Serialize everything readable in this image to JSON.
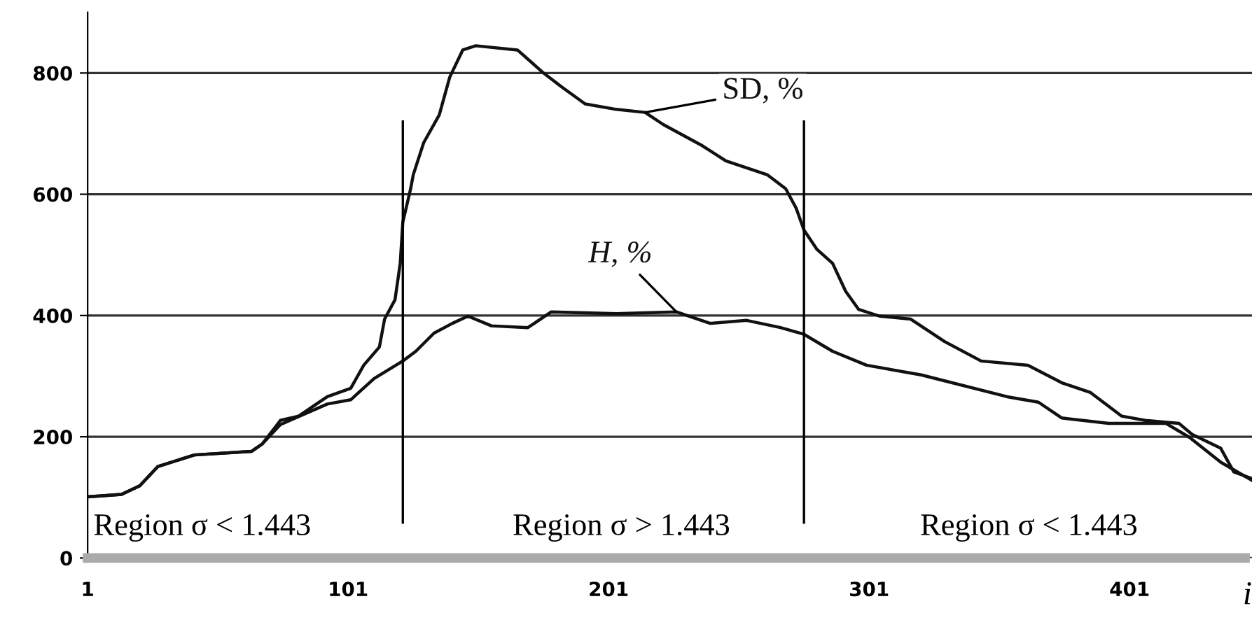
{
  "chart_data": {
    "type": "line",
    "xlabel": "i",
    "xlim": [
      1,
      448
    ],
    "ylim": [
      0,
      900
    ],
    "xticks": [
      1,
      101,
      201,
      301,
      401
    ],
    "yticks": [
      0,
      200,
      400,
      600,
      800
    ],
    "grid": "y",
    "marker": "none",
    "line_style": "solid",
    "series": [
      {
        "name": "SD, %",
        "color": "#111111",
        "x": [
          1,
          14,
          21,
          28,
          42,
          64,
          68,
          75,
          82,
          93,
          102,
          107,
          113,
          115,
          119,
          121,
          122,
          125,
          126,
          130,
          136,
          140,
          145,
          150,
          166,
          176,
          183,
          192,
          204,
          215,
          222,
          237,
          246,
          262,
          269,
          273,
          276,
          281,
          287,
          292,
          297,
          305,
          317,
          330,
          344,
          362,
          375,
          386,
          398,
          407,
          420,
          425,
          436,
          441,
          448
        ],
        "values": [
          101,
          105,
          119,
          151,
          170,
          176,
          188,
          227,
          234,
          266,
          280,
          318,
          348,
          394,
          426,
          486,
          554,
          609,
          632,
          685,
          731,
          793,
          838,
          845,
          838,
          800,
          777,
          749,
          740,
          735,
          715,
          680,
          655,
          632,
          609,
          577,
          541,
          509,
          486,
          440,
          410,
          399,
          394,
          357,
          325,
          318,
          289,
          273,
          234,
          227,
          222,
          204,
          181,
          142,
          131
        ]
      },
      {
        "name": "H, %",
        "color": "#111111",
        "x": [
          1,
          14,
          21,
          28,
          42,
          64,
          68,
          75,
          93,
          102,
          111,
          122,
          127,
          134,
          141,
          147,
          156,
          170,
          179,
          204,
          227,
          240,
          254,
          267,
          276,
          287,
          300,
          321,
          354,
          366,
          375,
          393,
          415,
          424,
          436,
          448
        ],
        "values": [
          101,
          105,
          119,
          151,
          170,
          176,
          188,
          220,
          254,
          261,
          296,
          325,
          341,
          371,
          387,
          399,
          383,
          380,
          406,
          403,
          406,
          387,
          392,
          380,
          369,
          341,
          318,
          302,
          266,
          257,
          231,
          222,
          222,
          199,
          158,
          128
        ]
      }
    ],
    "ref_lines": [
      {
        "axis": "x",
        "value": 122,
        "color": "#000000"
      },
      {
        "axis": "x",
        "value": 276,
        "color": "#000000"
      }
    ],
    "annotations": [
      "Region σ < 1.443",
      "Region σ > 1.443",
      "Region σ < 1.443"
    ]
  }
}
